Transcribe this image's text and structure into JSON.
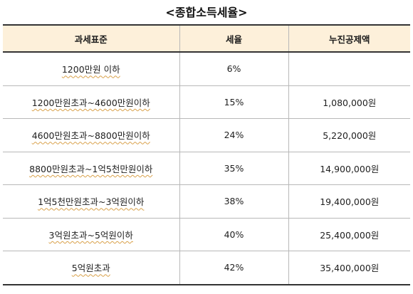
{
  "title": "<종합소득세율>",
  "columns": [
    "과세표준",
    "세율",
    "누진공제액"
  ],
  "rows": [
    {
      "bracket": "1200만원  이하",
      "rate": "6%",
      "deduction": ""
    },
    {
      "bracket": "1200만원초과~4600만원이하",
      "rate": "15%",
      "deduction": "1,080,000원"
    },
    {
      "bracket": "4600만원초과~8800만원이하",
      "rate": "24%",
      "deduction": "5,220,000원"
    },
    {
      "bracket": "8800만원초과~1억5천만원이하",
      "rate": "35%",
      "deduction": "14,900,000원"
    },
    {
      "bracket": "1억5천만원초과~3억원이하",
      "rate": "38%",
      "deduction": "19,400,000원"
    },
    {
      "bracket": "3억원초과~5억원이하",
      "rate": "40%",
      "deduction": "25,400,000원"
    },
    {
      "bracket": "5억원초과",
      "rate": "42%",
      "deduction": "35,400,000원"
    }
  ]
}
